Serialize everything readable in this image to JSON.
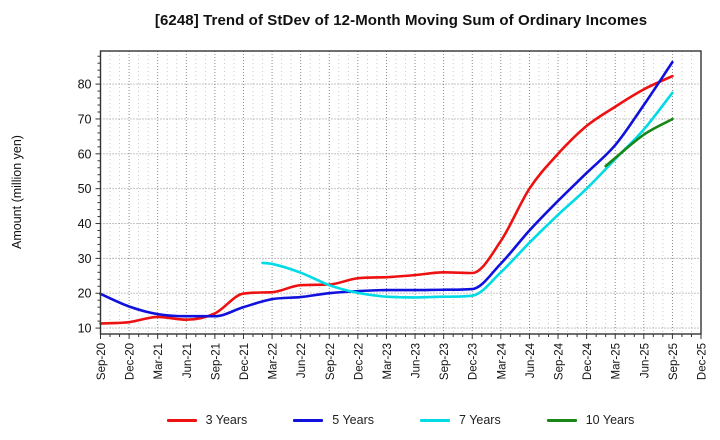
{
  "window": {
    "title": "[6248]  Trend of StDev of 12-Month Moving Sum of Ordinary Incomes"
  },
  "chart_data": {
    "type": "line",
    "title": "[6248]  Trend of StDev of 12-Month Moving Sum of Ordinary Incomes",
    "xlabel": "",
    "ylabel": "Amount (million yen)",
    "ylim": [
      8.3,
      89.5
    ],
    "yticks": [
      10,
      20,
      30,
      40,
      50,
      60,
      70,
      80
    ],
    "grid": "dotted, vertical monthly minor + quarterly major, horizontal every 10",
    "legend_position": "bottom center",
    "x_unit": "months, quarterly tick labels",
    "categories": [
      "Sep-20",
      "Dec-20",
      "Mar-21",
      "Jun-21",
      "Sep-21",
      "Dec-21",
      "Mar-22",
      "Jun-22",
      "Sep-22",
      "Dec-22",
      "Mar-23",
      "Jun-23",
      "Sep-23",
      "Dec-23",
      "Mar-24",
      "Jun-24",
      "Sep-24",
      "Dec-24",
      "Mar-25",
      "Jun-25",
      "Sep-25",
      "Dec-25"
    ],
    "series": [
      {
        "name": "3 Years",
        "color": "#ee1111",
        "values": [
          11.3,
          11.7,
          13.2,
          12.4,
          14.2,
          19.9,
          20.3,
          22.3,
          22.5,
          24.3,
          24.6,
          25.2,
          26.0,
          25.8,
          35.0,
          50.0,
          60.0,
          68.0,
          73.5,
          78.5,
          82.3,
          null
        ]
      },
      {
        "name": "5 Years",
        "color": "#1111dd",
        "values": [
          19.8,
          16.2,
          14.0,
          13.4,
          13.4,
          16.0,
          18.3,
          18.9,
          20.0,
          20.6,
          20.9,
          20.9,
          21.0,
          21.2,
          28.5,
          38.0,
          46.5,
          54.5,
          62.5,
          74.0,
          86.3,
          null
        ]
      },
      {
        "name": "7 Years",
        "color": "#00dbe6",
        "values": [
          null,
          null,
          null,
          null,
          null,
          null,
          28.4,
          25.9,
          22.3,
          20.1,
          19.0,
          18.8,
          19.0,
          19.3,
          26.0,
          34.5,
          42.5,
          50.0,
          58.5,
          67.0,
          77.5,
          null
        ],
        "prestart": {
          "months_before_first": 1,
          "value": 28.7
        }
      },
      {
        "name": "10 Years",
        "color": "#178717",
        "values": [
          null,
          null,
          null,
          null,
          null,
          null,
          null,
          null,
          null,
          null,
          null,
          null,
          null,
          null,
          null,
          null,
          null,
          null,
          58.8,
          65.5,
          70.0,
          null
        ],
        "prestart": {
          "months_before_first": 1,
          "value": 56.5
        }
      }
    ]
  }
}
